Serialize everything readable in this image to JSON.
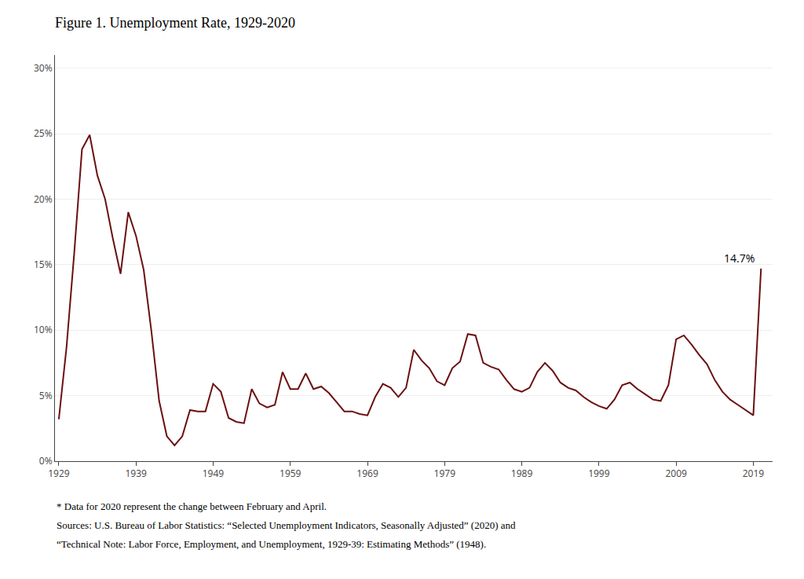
{
  "chart_data": {
    "type": "line",
    "title": "Figure 1. Unemployment Rate, 1929-2020",
    "color": "#6B1010",
    "grid": true,
    "annotations": [
      {
        "text": "14.7%",
        "x": 2020,
        "y": 0.147
      }
    ],
    "footnotes": [
      "* Data for 2020 represent the change between February and April.",
      "Sources: U.S. Bureau of Labor Statistics: “Selected Unemployment Indicators, Seasonally Adjusted” (2020) and",
      "“Technical Note: Labor Force, Employment, and Unemployment, 1929-39: Estimating Methods” (1948)."
    ],
    "xlim": [
      1928.5,
      2021.5
    ],
    "xticks": [
      1929,
      1939,
      1949,
      1959,
      1969,
      1979,
      1989,
      1999,
      2009,
      2019
    ],
    "ylim": [
      0,
      0.31
    ],
    "yticks": [
      {
        "value": 0.0,
        "label": "0%"
      },
      {
        "value": 0.05,
        "label": "5%"
      },
      {
        "value": 0.1,
        "label": "10%"
      },
      {
        "value": 0.15,
        "label": "15%"
      },
      {
        "value": 0.2,
        "label": "20%"
      },
      {
        "value": 0.25,
        "label": "25%"
      },
      {
        "value": 0.3,
        "label": "30%"
      }
    ],
    "x": [
      1929,
      1930,
      1931,
      1932,
      1933,
      1934,
      1935,
      1936,
      1937,
      1938,
      1939,
      1940,
      1941,
      1942,
      1943,
      1944,
      1945,
      1946,
      1947,
      1948,
      1949,
      1950,
      1951,
      1952,
      1953,
      1954,
      1955,
      1956,
      1957,
      1958,
      1959,
      1960,
      1961,
      1962,
      1963,
      1964,
      1965,
      1966,
      1967,
      1968,
      1969,
      1970,
      1971,
      1972,
      1973,
      1974,
      1975,
      1976,
      1977,
      1978,
      1979,
      1980,
      1981,
      1982,
      1983,
      1984,
      1985,
      1986,
      1987,
      1988,
      1989,
      1990,
      1991,
      1992,
      1993,
      1994,
      1995,
      1996,
      1997,
      1998,
      1999,
      2000,
      2001,
      2002,
      2003,
      2004,
      2005,
      2006,
      2007,
      2008,
      2009,
      2010,
      2011,
      2012,
      2013,
      2014,
      2015,
      2016,
      2017,
      2018,
      2019,
      2020
    ],
    "values": [
      0.032,
      0.087,
      0.159,
      0.238,
      0.249,
      0.218,
      0.2,
      0.17,
      0.143,
      0.19,
      0.172,
      0.146,
      0.099,
      0.046,
      0.019,
      0.012,
      0.019,
      0.039,
      0.038,
      0.038,
      0.059,
      0.053,
      0.033,
      0.03,
      0.029,
      0.055,
      0.044,
      0.041,
      0.043,
      0.068,
      0.055,
      0.055,
      0.067,
      0.055,
      0.057,
      0.052,
      0.045,
      0.038,
      0.038,
      0.036,
      0.035,
      0.049,
      0.059,
      0.056,
      0.049,
      0.056,
      0.085,
      0.077,
      0.071,
      0.061,
      0.058,
      0.071,
      0.076,
      0.097,
      0.096,
      0.075,
      0.072,
      0.07,
      0.062,
      0.055,
      0.053,
      0.056,
      0.068,
      0.075,
      0.069,
      0.06,
      0.056,
      0.054,
      0.049,
      0.045,
      0.042,
      0.04,
      0.047,
      0.058,
      0.06,
      0.055,
      0.051,
      0.047,
      0.046,
      0.058,
      0.093,
      0.096,
      0.089,
      0.081,
      0.074,
      0.062,
      0.053,
      0.047,
      0.043,
      0.039,
      0.035,
      0.147
    ]
  }
}
